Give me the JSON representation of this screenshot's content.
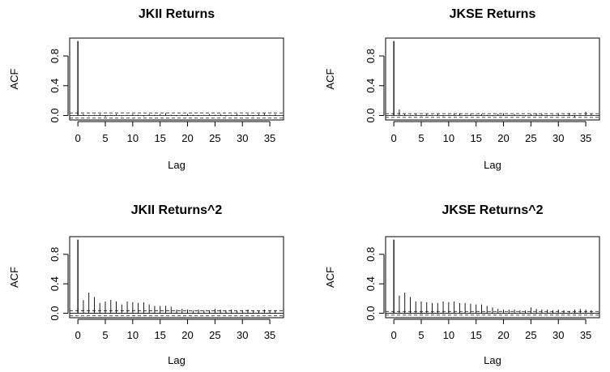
{
  "chart_data": [
    {
      "type": "bar",
      "title": "JKII Returns",
      "xlabel": "Lag",
      "ylabel": "ACF",
      "x_ticks": [
        0,
        5,
        10,
        15,
        20,
        25,
        30,
        35
      ],
      "y_ticks": [
        "0.0",
        "0.4",
        "0.8"
      ],
      "y_tick_values": [
        0,
        0.4,
        0.8
      ],
      "xlim": [
        -1.5,
        37.5
      ],
      "ylim": [
        -0.06,
        1.04
      ],
      "ci": 0.035,
      "lags": [
        0,
        1,
        2,
        3,
        4,
        5,
        6,
        7,
        8,
        9,
        10,
        11,
        12,
        13,
        14,
        15,
        16,
        17,
        18,
        19,
        20,
        21,
        22,
        23,
        24,
        25,
        26,
        27,
        28,
        29,
        30,
        31,
        32,
        33,
        34,
        35,
        36
      ],
      "values": [
        1.0,
        0.02,
        -0.01,
        0.01,
        0.02,
        -0.02,
        0.01,
        0.02,
        -0.01,
        0.01,
        0.02,
        0.01,
        -0.01,
        0.02,
        0.01,
        0.02,
        0.03,
        0.01,
        -0.01,
        0.01,
        0.02,
        0.01,
        -0.01,
        0.01,
        0.02,
        0.01,
        0.02,
        -0.01,
        0.01,
        0.02,
        0.01,
        0.02,
        -0.01,
        0.02,
        0.03,
        0.01,
        0.02
      ]
    },
    {
      "type": "bar",
      "title": "JKSE Returns",
      "xlabel": "Lag",
      "ylabel": "ACF",
      "x_ticks": [
        0,
        5,
        10,
        15,
        20,
        25,
        30,
        35
      ],
      "y_ticks": [
        "0.0",
        "0.4",
        "0.8"
      ],
      "y_tick_values": [
        0,
        0.4,
        0.8
      ],
      "xlim": [
        -1.5,
        37.5
      ],
      "ylim": [
        -0.06,
        1.04
      ],
      "ci": 0.025,
      "lags": [
        0,
        1,
        2,
        3,
        4,
        5,
        6,
        7,
        8,
        9,
        10,
        11,
        12,
        13,
        14,
        15,
        16,
        17,
        18,
        19,
        20,
        21,
        22,
        23,
        24,
        25,
        26,
        27,
        28,
        29,
        30,
        31,
        32,
        33,
        34,
        35,
        36
      ],
      "values": [
        1.0,
        0.08,
        0.02,
        0.01,
        0.02,
        -0.01,
        0.02,
        0.01,
        0.02,
        -0.01,
        0.01,
        0.02,
        0.03,
        0.01,
        0.02,
        0.01,
        0.02,
        0.01,
        -0.01,
        0.02,
        0.03,
        0.01,
        0.02,
        0.01,
        -0.01,
        0.02,
        0.03,
        0.02,
        -0.01,
        0.01,
        0.02,
        0.01,
        0.03,
        -0.02,
        0.01,
        0.05,
        0.02
      ]
    },
    {
      "type": "bar",
      "title": "JKII Returns^2",
      "xlabel": "Lag",
      "ylabel": "ACF",
      "x_ticks": [
        0,
        5,
        10,
        15,
        20,
        25,
        30,
        35
      ],
      "y_ticks": [
        "0.0",
        "0.4",
        "0.8"
      ],
      "y_tick_values": [
        0,
        0.4,
        0.8
      ],
      "xlim": [
        -1.5,
        37.5
      ],
      "ylim": [
        -0.06,
        1.04
      ],
      "ci": 0.035,
      "lags": [
        0,
        1,
        2,
        3,
        4,
        5,
        6,
        7,
        8,
        9,
        10,
        11,
        12,
        13,
        14,
        15,
        16,
        17,
        18,
        19,
        20,
        21,
        22,
        23,
        24,
        25,
        26,
        27,
        28,
        29,
        30,
        31,
        32,
        33,
        34,
        35,
        36
      ],
      "values": [
        1.0,
        0.18,
        0.28,
        0.22,
        0.14,
        0.16,
        0.18,
        0.16,
        0.12,
        0.16,
        0.15,
        0.14,
        0.15,
        0.12,
        0.1,
        0.1,
        0.1,
        0.09,
        0.05,
        0.06,
        0.05,
        0.04,
        0.05,
        0.04,
        0.04,
        0.06,
        0.05,
        0.04,
        0.05,
        0.03,
        0.04,
        0.05,
        0.04,
        0.03,
        0.05,
        0.04,
        0.04
      ]
    },
    {
      "type": "bar",
      "title": "JKSE Returns^2",
      "xlabel": "Lag",
      "ylabel": "ACF",
      "x_ticks": [
        0,
        5,
        10,
        15,
        20,
        25,
        30,
        35
      ],
      "y_ticks": [
        "0.0",
        "0.4",
        "0.8"
      ],
      "y_tick_values": [
        0,
        0.4,
        0.8
      ],
      "xlim": [
        -1.5,
        37.5
      ],
      "ylim": [
        -0.06,
        1.04
      ],
      "ci": 0.025,
      "lags": [
        0,
        1,
        2,
        3,
        4,
        5,
        6,
        7,
        8,
        9,
        10,
        11,
        12,
        13,
        14,
        15,
        16,
        17,
        18,
        19,
        20,
        21,
        22,
        23,
        24,
        25,
        26,
        27,
        28,
        29,
        30,
        31,
        32,
        33,
        34,
        35,
        36
      ],
      "values": [
        1.0,
        0.24,
        0.28,
        0.22,
        0.16,
        0.16,
        0.15,
        0.14,
        0.14,
        0.16,
        0.15,
        0.16,
        0.14,
        0.14,
        0.13,
        0.12,
        0.12,
        0.1,
        0.08,
        0.06,
        0.05,
        0.05,
        0.05,
        0.04,
        0.04,
        0.08,
        0.06,
        0.05,
        0.05,
        0.04,
        0.05,
        0.04,
        0.03,
        0.05,
        0.06,
        0.05,
        0.04
      ]
    }
  ]
}
